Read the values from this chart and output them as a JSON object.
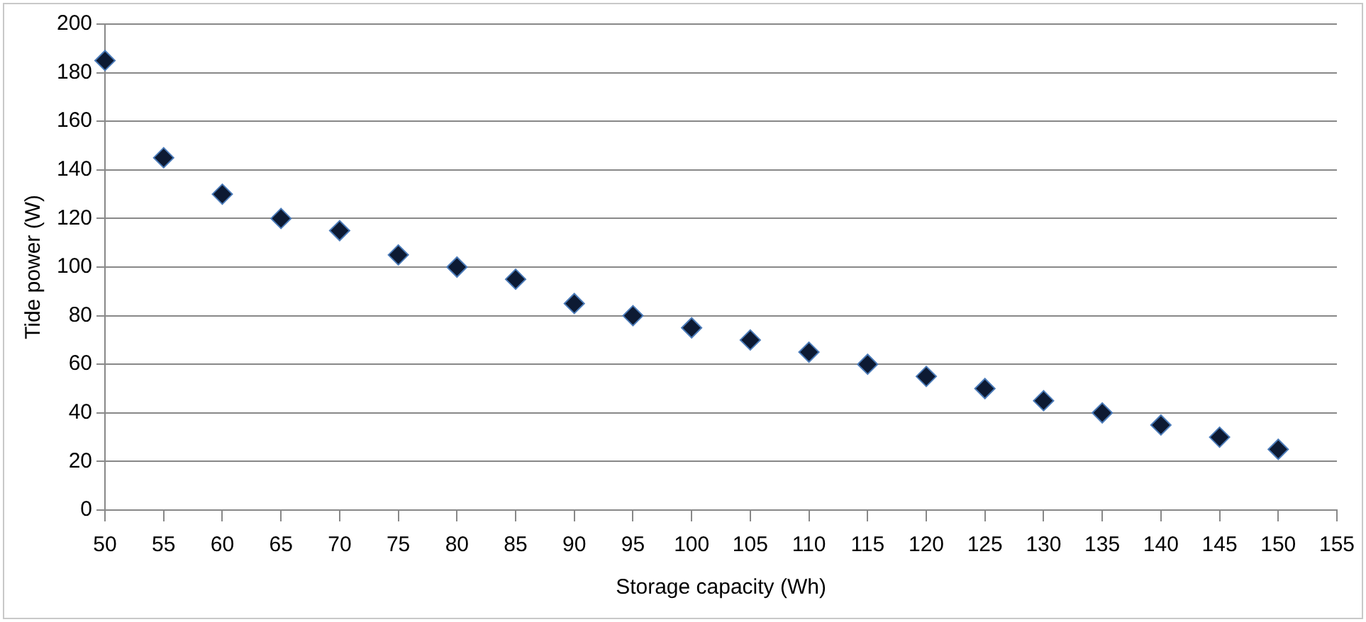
{
  "chart_data": {
    "type": "scatter",
    "xlabel": "Storage capacity (Wh)",
    "ylabel": "Tide power (W)",
    "x": [
      50,
      55,
      60,
      65,
      70,
      75,
      80,
      85,
      90,
      95,
      100,
      105,
      110,
      115,
      120,
      125,
      130,
      135,
      140,
      145,
      150
    ],
    "series": [
      {
        "color": "#0d1a33",
        "values": [
          185,
          145,
          130,
          120,
          115,
          105,
          100,
          95,
          85,
          80,
          75,
          70,
          65,
          60,
          55,
          50,
          45,
          40,
          35,
          30,
          25
        ]
      }
    ],
    "xlim": [
      50,
      155
    ],
    "xticks": [
      50,
      55,
      60,
      65,
      70,
      75,
      80,
      85,
      90,
      95,
      100,
      105,
      110,
      115,
      120,
      125,
      130,
      135,
      140,
      145,
      150,
      155
    ],
    "ylim": [
      0,
      200
    ],
    "yticks": [
      0,
      20,
      40,
      60,
      80,
      100,
      120,
      140,
      160,
      180,
      200
    ],
    "grid": "y",
    "legend": false,
    "marker": "diamond"
  }
}
